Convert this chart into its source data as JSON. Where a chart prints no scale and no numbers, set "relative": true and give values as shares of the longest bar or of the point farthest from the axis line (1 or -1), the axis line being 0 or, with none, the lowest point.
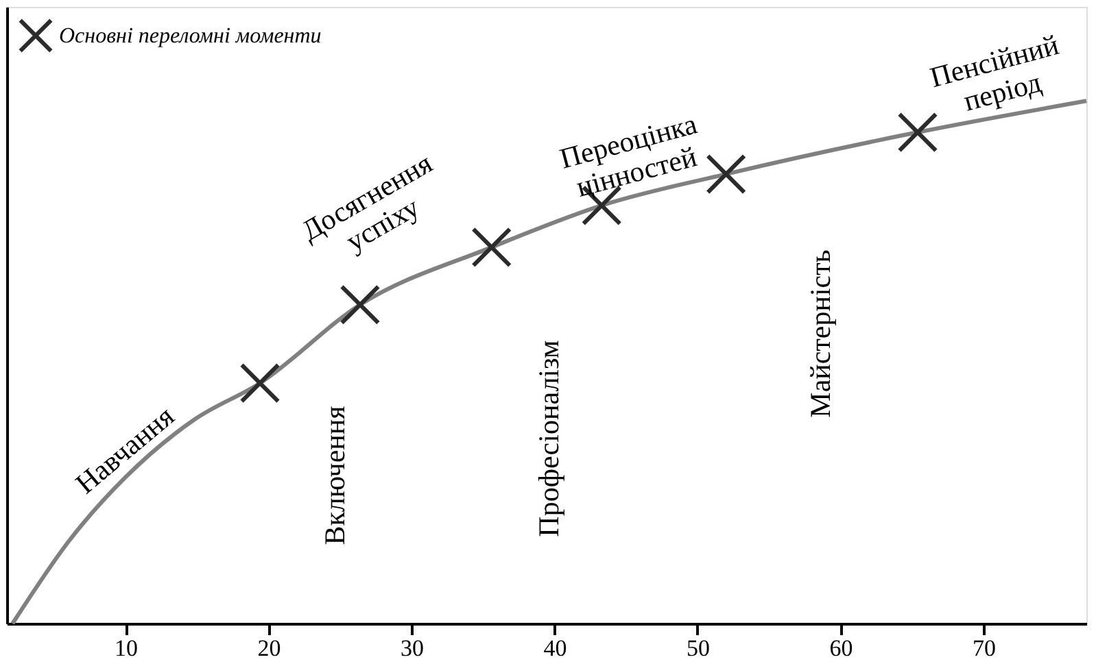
{
  "chart_data": {
    "type": "line",
    "relative": true,
    "xlim": [
      1.7,
      77.2
    ],
    "xticks": [
      10,
      20,
      30,
      40,
      50,
      60,
      70
    ],
    "tick_labels": "x",
    "grid": false,
    "legend": "top left",
    "series": [
      {
        "color": "#808080",
        "line_style": "solid",
        "x": [
          2.1,
          6.1,
          10,
          14.8,
          19.4,
          26.4,
          35.6,
          43.3,
          52,
          65.4,
          77.2
        ],
        "values": [
          0,
          0.16,
          0.28,
          0.39,
          0.46,
          0.61,
          0.72,
          0.8,
          0.86,
          0.94,
          1.0
        ]
      },
      {
        "type": "scatter",
        "name": "Основні переломні моменти",
        "color": "#2b2b2b",
        "marker": "cross",
        "x": [
          19.4,
          26.4,
          35.6,
          43.3,
          52,
          65.4
        ],
        "values": [
          0.46,
          0.61,
          0.72,
          0.8,
          0.86,
          0.94
        ]
      }
    ],
    "annotations": [
      "Навчання",
      "Включення",
      "Досягнення\nуспіху",
      "Професіоналізм",
      "Переоцінка\nцінностей",
      "Майстерність",
      "Пенсійний\nперіод"
    ]
  }
}
